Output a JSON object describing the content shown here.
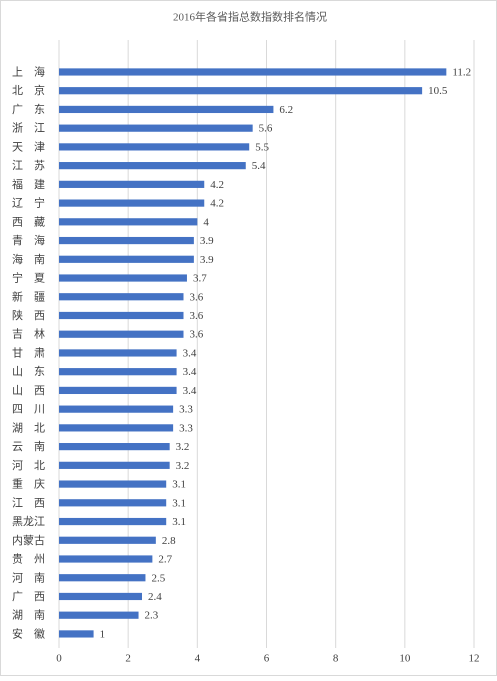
{
  "chart_data": {
    "type": "barh",
    "title": "2016年各省指总数指数排名情况",
    "categories": [
      "上　海",
      "北　京",
      "广　东",
      "浙　江",
      "天　津",
      "江　苏",
      "福　建",
      "辽　宁",
      "西　藏",
      "青　海",
      "海　南",
      "宁　夏",
      "新　疆",
      "陕　西",
      "吉　林",
      "甘　肃",
      "山　东",
      "山　西",
      "四　川",
      "湖　北",
      "云　南",
      "河　北",
      "重　庆",
      "江　西",
      "黑龙江",
      "内蒙古",
      "贵　州",
      "河　南",
      "广　西",
      "湖　南",
      "安　徽"
    ],
    "values": [
      11.2,
      10.5,
      6.2,
      5.6,
      5.5,
      5.4,
      4.2,
      4.2,
      4,
      3.9,
      3.9,
      3.7,
      3.6,
      3.6,
      3.6,
      3.4,
      3.4,
      3.4,
      3.3,
      3.3,
      3.2,
      3.2,
      3.1,
      3.1,
      3.1,
      2.8,
      2.7,
      2.5,
      2.4,
      2.3,
      1
    ],
    "color": "#4472c4",
    "xlim": [
      0,
      12
    ],
    "xticks": [
      0,
      2,
      4,
      6,
      8,
      10,
      12
    ],
    "grid": true
  }
}
